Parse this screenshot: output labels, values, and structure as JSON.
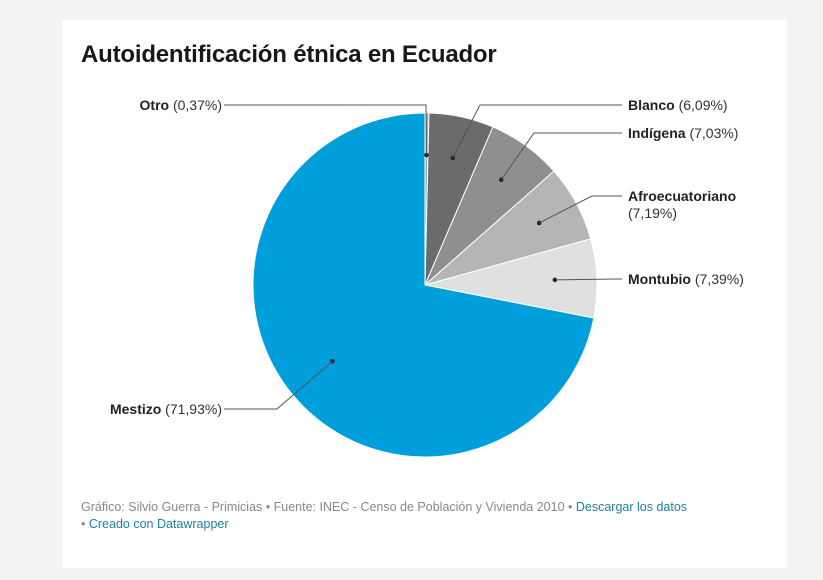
{
  "title": "Autoidentificación étnica en Ecuador",
  "footer": {
    "credit": "Gráfico: Silvio Guerra - Primicias • Fuente: INEC - Censo de Población y Vivienda 2010",
    "sep": " • ",
    "download_link": "Descargar los datos",
    "sep2": "• ",
    "created_link": "Creado con Datawrapper"
  },
  "chart_data": {
    "type": "pie",
    "title": "Autoidentificación étnica en Ecuador",
    "slices": [
      {
        "label": "Otro",
        "value": 0.37,
        "display": "(0,37%)",
        "color": "#a5a5a5"
      },
      {
        "label": "Blanco",
        "value": 6.09,
        "display": "(6,09%)",
        "color": "#6b6b6b"
      },
      {
        "label": "Indígena",
        "value": 7.03,
        "display": "(7,03%)",
        "color": "#8f8f8f"
      },
      {
        "label": "Afroecuatoriano",
        "value": 7.19,
        "display": "(7,19%)",
        "color": "#b5b5b5"
      },
      {
        "label": "Montubio",
        "value": 7.39,
        "display": "(7,39%)",
        "color": "#e0e0e0"
      },
      {
        "label": "Mestizo",
        "value": 71.93,
        "display": "(71,93%)",
        "color": "#009fdb"
      }
    ]
  }
}
